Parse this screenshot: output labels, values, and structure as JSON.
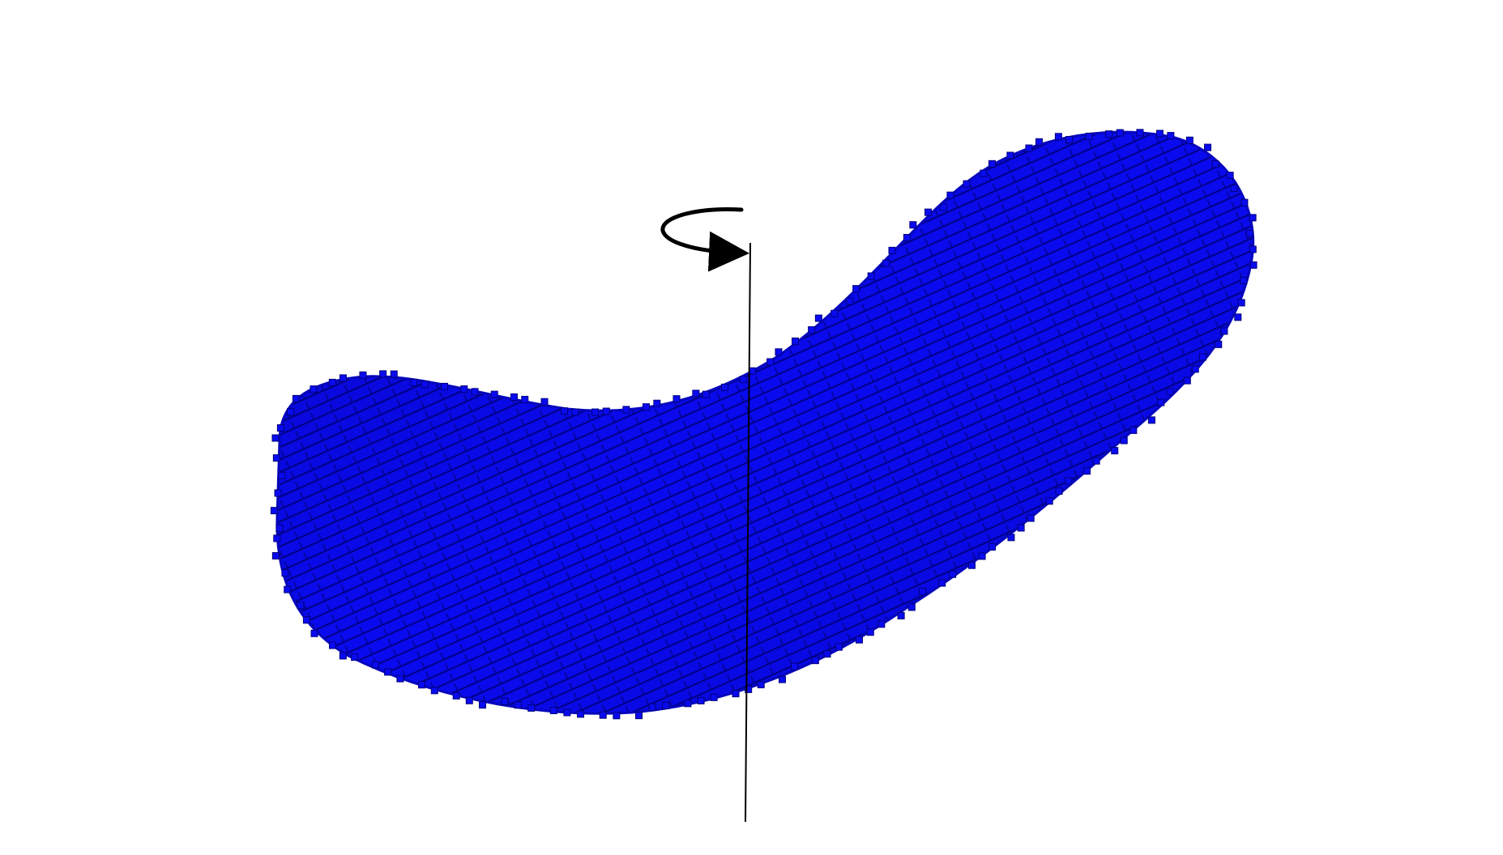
{
  "figure": {
    "background_color": "#ffffff",
    "voxel_color": "#0a0af0",
    "voxel_dark": "#00007a",
    "axis_color": "#000000",
    "rotation_indicator": "counterclockwise-rotation-arrow-icon",
    "rotation_axis": "vertical"
  }
}
